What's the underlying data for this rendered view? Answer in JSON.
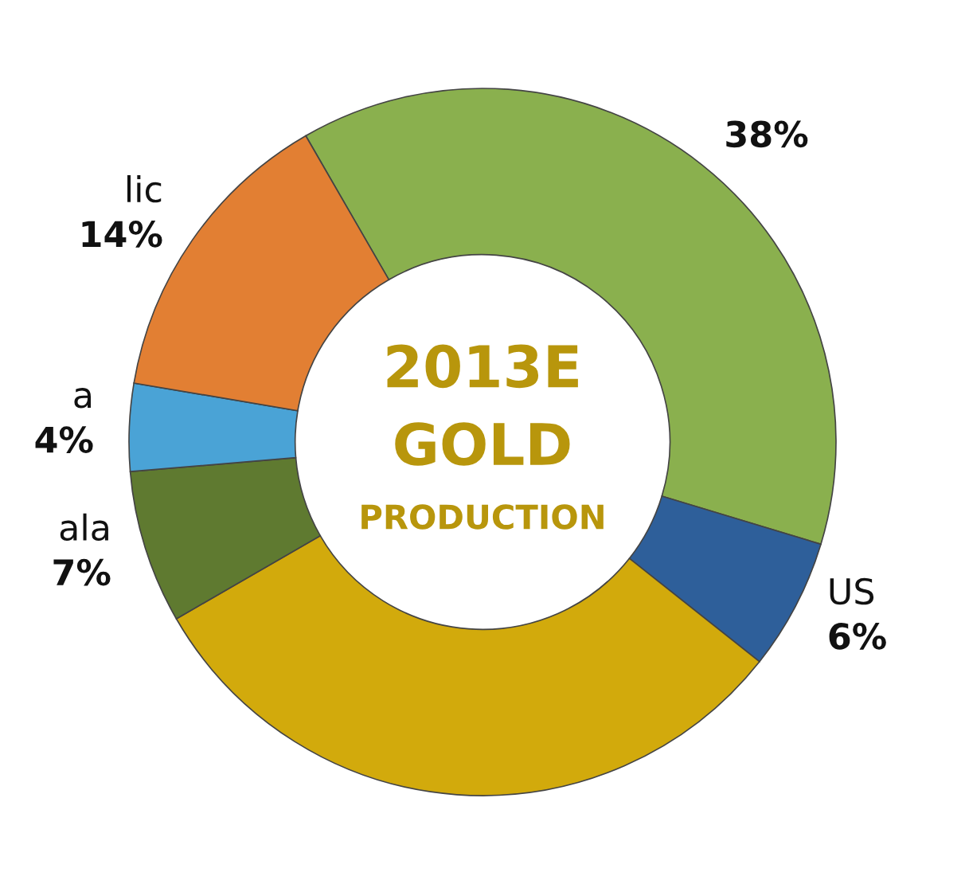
{
  "chart_data": {
    "type": "donut",
    "categories": [
      null,
      "US",
      null,
      "ala",
      "a",
      "lic"
    ],
    "values": [
      38,
      6,
      31,
      7,
      4,
      14
    ],
    "colors": [
      "#8ab04e",
      "#2e5f9a",
      "#d2aa0c",
      "#5f7a30",
      "#4aa3d6",
      "#e27f33"
    ],
    "value_labels": [
      "38%",
      "6%",
      null,
      "7%",
      "4%",
      "14%"
    ],
    "annotations": [
      "2013E",
      "GOLD",
      "PRODUCTION"
    ]
  }
}
